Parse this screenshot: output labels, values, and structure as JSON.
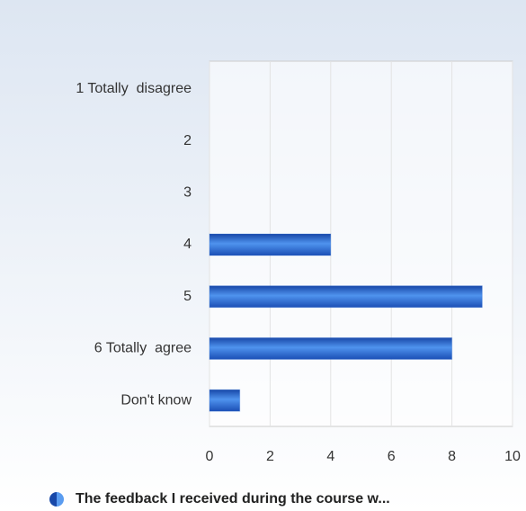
{
  "chart_data": {
    "type": "bar",
    "orientation": "horizontal",
    "categories": [
      "1 Totally  disagree",
      "2",
      "3",
      "4",
      "5",
      "6 Totally  agree",
      "Don't know"
    ],
    "series": [
      {
        "name": "The feedback I received during the course w...",
        "color": "#2f6fd6",
        "values": [
          0,
          0,
          0,
          4,
          9,
          8,
          1
        ]
      }
    ],
    "xlim": [
      0,
      10
    ],
    "xticks": [
      0,
      2,
      4,
      6,
      8,
      10
    ],
    "grid": true
  }
}
